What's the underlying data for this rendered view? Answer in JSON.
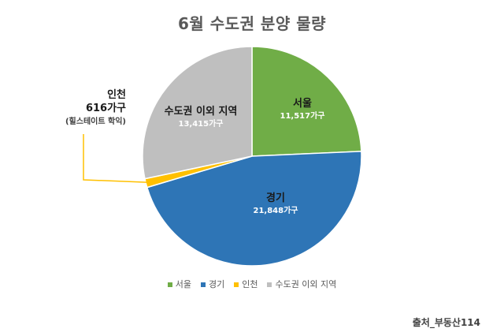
{
  "title": "6월 수도권 분양 물량",
  "source": "출처_부동산114",
  "callout": {
    "name": "인천",
    "value": "616가구",
    "note": "(힐스테이트 학익)"
  },
  "chart_data": {
    "type": "pie",
    "title": "6월 수도권 분양 물량",
    "unit": "가구",
    "slices": [
      {
        "name": "서울",
        "value": 11517,
        "value_label": "11,517가구",
        "color": "#70AD47"
      },
      {
        "name": "경기",
        "value": 21848,
        "value_label": "21,848가구",
        "color": "#2E75B6"
      },
      {
        "name": "인천",
        "value": 616,
        "value_label": "616가구",
        "color": "#FFC000"
      },
      {
        "name": "수도권 이외 지역",
        "value": 13415,
        "value_label": "13,415가구",
        "color": "#BFBFBF"
      }
    ],
    "legend": [
      "서울",
      "경기",
      "인천",
      "수도권 이외 지역"
    ],
    "legend_position": "bottom"
  }
}
